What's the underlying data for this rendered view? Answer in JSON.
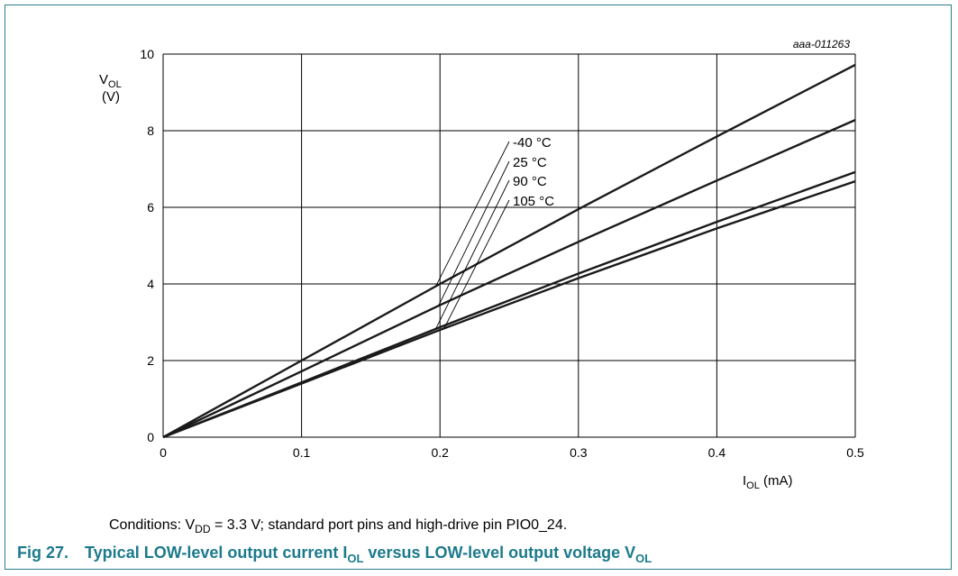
{
  "chart_data": {
    "type": "line",
    "reference_id": "aaa-011263",
    "ylabel": {
      "main": "V",
      "sub": "OL",
      "unit": "(V)"
    },
    "xlabel": {
      "main": "I",
      "sub": "OL",
      "unit": " (mA)"
    },
    "xlim": [
      0,
      0.5
    ],
    "ylim": [
      0,
      10
    ],
    "x_ticks": [
      0,
      0.1,
      0.2,
      0.3,
      0.4,
      0.5
    ],
    "y_ticks": [
      0,
      2,
      4,
      6,
      8,
      10
    ],
    "x_tick_labels": [
      "0",
      "0.1",
      "0.2",
      "0.3",
      "0.4",
      "0.5"
    ],
    "y_tick_labels": [
      "0",
      "2",
      "4",
      "6",
      "8",
      "10"
    ],
    "grid": true,
    "series": [
      {
        "name": "-40 °C",
        "x": [
          0,
          0.1,
          0.2,
          0.3,
          0.4,
          0.5
        ],
        "y": [
          0,
          2.0,
          4.0,
          5.95,
          7.85,
          9.72
        ]
      },
      {
        "name": "25 °C",
        "x": [
          0,
          0.1,
          0.2,
          0.3,
          0.4,
          0.5
        ],
        "y": [
          0,
          1.72,
          3.45,
          5.1,
          6.7,
          8.28
        ]
      },
      {
        "name": "90 °C",
        "x": [
          0,
          0.1,
          0.2,
          0.3,
          0.4,
          0.5
        ],
        "y": [
          0,
          1.43,
          2.87,
          4.27,
          5.62,
          6.92
        ]
      },
      {
        "name": "105 °C",
        "x": [
          0,
          0.1,
          0.2,
          0.3,
          0.4,
          0.5
        ],
        "y": [
          0,
          1.4,
          2.8,
          4.15,
          5.45,
          6.68
        ]
      }
    ]
  },
  "conditions": {
    "prefix": "Conditions: V",
    "sub": "DD",
    "suffix": " = 3.3 V; standard port pins and high-drive pin PIO0_24."
  },
  "caption": {
    "fig_label": "Fig 27.",
    "text1": "Typical LOW-level output current I",
    "sub1": "OL",
    "text2": " versus LOW-level output voltage V",
    "sub2": "OL"
  }
}
